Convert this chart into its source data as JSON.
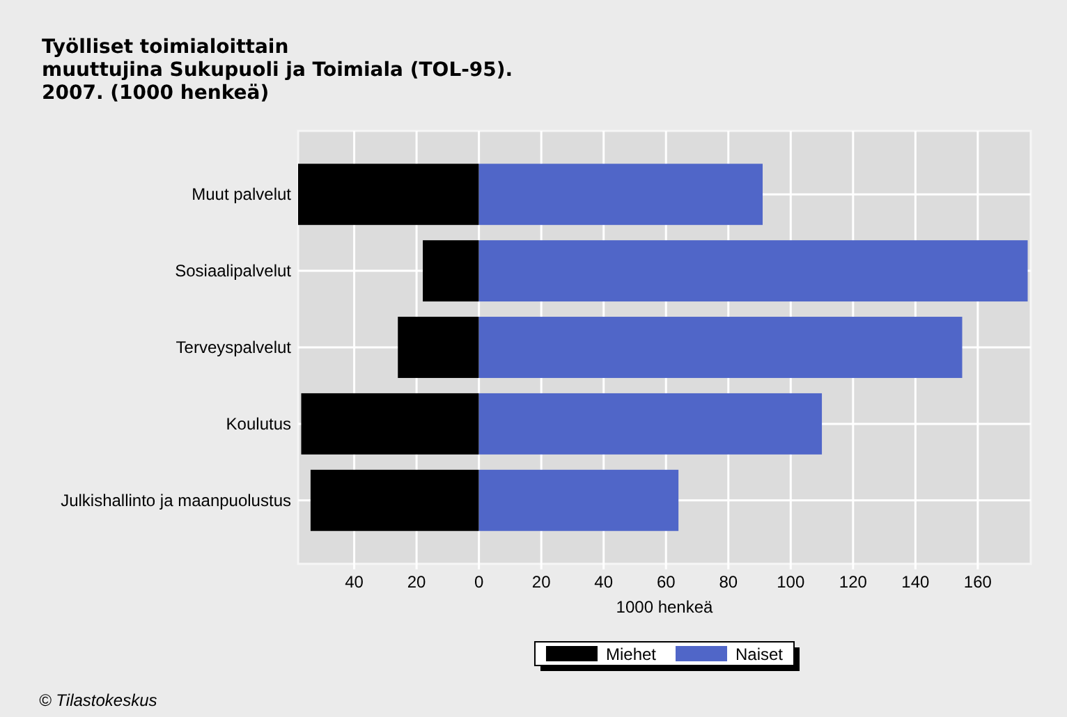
{
  "chart_data": {
    "type": "bar",
    "orientation": "horizontal",
    "stacked": true,
    "title": "Työlliset toimialoittain\nmuuttujina Sukupuoli ja Toimiala (TOL-95).\n2007. (1000 henkeä)",
    "xlabel": "1000 henkeä",
    "categories": [
      "Muut palvelut",
      "Sosiaalipalvelut",
      "Terveyspalvelut",
      "Koulutus",
      "Julkishallinto ja maanpuolustus"
    ],
    "series": [
      {
        "name": "Miehet",
        "color": "#000000",
        "values": [
          -58,
          -18,
          -26,
          -57,
          -54
        ]
      },
      {
        "name": "Naiset",
        "color": "#5066c8",
        "values": [
          91,
          176,
          155,
          110,
          64
        ]
      }
    ],
    "xlim": [
      -58,
      177
    ],
    "xticks": [
      {
        "value": -40,
        "label": "40"
      },
      {
        "value": -20,
        "label": "20"
      },
      0,
      20,
      40,
      60,
      80,
      100,
      120,
      140,
      160
    ],
    "grid": true,
    "legend": "bottom",
    "annotations": [
      "© Tilastokeskus"
    ]
  }
}
